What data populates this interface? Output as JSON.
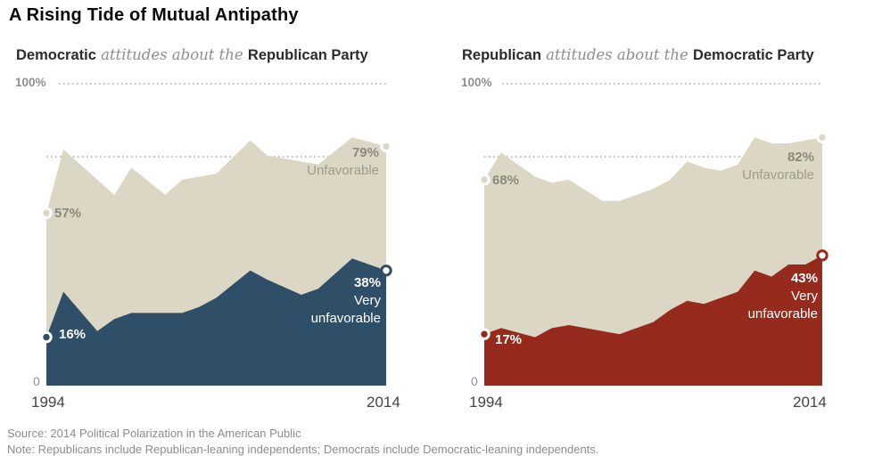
{
  "title": "A Rising Tide of Mutual Antipathy",
  "charts": [
    {
      "subtitle_lead": "Democratic",
      "subtitle_mid": " attitudes about the ",
      "subtitle_tail": "Republican Party",
      "axis": {
        "top": "100%",
        "zero": "0",
        "x_start": "1994",
        "x_end": "2014"
      }
    },
    {
      "subtitle_lead": "Republican",
      "subtitle_mid": " attitudes about the ",
      "subtitle_tail": "Democratic Party",
      "axis": {
        "top": "100%",
        "zero": "0",
        "x_start": "1994",
        "x_end": "2014"
      }
    }
  ],
  "chart_data": [
    {
      "type": "area",
      "title": "Democratic attitudes about the Republican Party",
      "xlim": [
        1994,
        2014
      ],
      "ylim": [
        0,
        100
      ],
      "grid": "dotted line at 100%, dotted leader line at end-label level",
      "legend_position": "labels inside plot at series start and end",
      "series": [
        {
          "name": "Unfavorable",
          "color": "#DBD7C4",
          "start_label": "57%",
          "end_label": "79%",
          "points": [
            [
              1994,
              57
            ],
            [
              1995,
              78
            ],
            [
              1996,
              73
            ],
            [
              1998,
              63
            ],
            [
              1999,
              72
            ],
            [
              2001,
              63
            ],
            [
              2002,
              68
            ],
            [
              2004,
              70
            ],
            [
              2006,
              81
            ],
            [
              2007,
              76
            ],
            [
              2009,
              74
            ],
            [
              2010,
              73
            ],
            [
              2012,
              82
            ],
            [
              2014,
              79
            ]
          ]
        },
        {
          "name": "Very unfavorable",
          "name_lines": [
            "Very",
            "unfavorable"
          ],
          "color": "#2F4F68",
          "start_label": "16%",
          "end_label": "38%",
          "points": [
            [
              1994,
              16
            ],
            [
              1995,
              31
            ],
            [
              1997,
              18
            ],
            [
              1998,
              22
            ],
            [
              1999,
              24
            ],
            [
              2001,
              24
            ],
            [
              2002,
              24
            ],
            [
              2003,
              26
            ],
            [
              2004,
              29
            ],
            [
              2006,
              38
            ],
            [
              2007,
              35
            ],
            [
              2009,
              30
            ],
            [
              2010,
              32
            ],
            [
              2012,
              42
            ],
            [
              2014,
              38
            ]
          ]
        }
      ]
    },
    {
      "type": "area",
      "title": "Republican attitudes about the Democratic Party",
      "xlim": [
        1994,
        2014
      ],
      "ylim": [
        0,
        100
      ],
      "grid": "dotted line at 100%, dotted leader line at end-label level",
      "legend_position": "labels inside plot at series start and end",
      "series": [
        {
          "name": "Unfavorable",
          "color": "#DBD7C4",
          "start_label": "68%",
          "end_label": "82%",
          "points": [
            [
              1994,
              68
            ],
            [
              1995,
              77
            ],
            [
              1997,
              69
            ],
            [
              1998,
              67
            ],
            [
              1999,
              68
            ],
            [
              2001,
              61
            ],
            [
              2002,
              61
            ],
            [
              2004,
              65
            ],
            [
              2005,
              68
            ],
            [
              2006,
              74
            ],
            [
              2007,
              72
            ],
            [
              2008,
              71
            ],
            [
              2009,
              73
            ],
            [
              2010,
              82
            ],
            [
              2011,
              80
            ],
            [
              2012,
              80
            ],
            [
              2014,
              82
            ]
          ]
        },
        {
          "name": "Very unfavorable",
          "name_lines": [
            "Very",
            "unfavorable"
          ],
          "color": "#962B1D",
          "start_label": "17%",
          "end_label": "43%",
          "points": [
            [
              1994,
              17
            ],
            [
              1995,
              19
            ],
            [
              1997,
              16
            ],
            [
              1998,
              19
            ],
            [
              1999,
              20
            ],
            [
              2000,
              19
            ],
            [
              2002,
              17
            ],
            [
              2003,
              19
            ],
            [
              2004,
              21
            ],
            [
              2005,
              25
            ],
            [
              2006,
              28
            ],
            [
              2007,
              27
            ],
            [
              2009,
              31
            ],
            [
              2010,
              38
            ],
            [
              2011,
              36
            ],
            [
              2012,
              40
            ],
            [
              2013,
              40
            ],
            [
              2014,
              43
            ]
          ]
        }
      ]
    }
  ],
  "colors": {
    "tan_area": "#DBD7C4",
    "blue_area": "#2F4F68",
    "red_area": "#962B1D",
    "dotted_grid": "#a8a8a8",
    "label_gray": "#8b8a7c"
  },
  "footer": {
    "source": "Source: 2014 Political Polarization in the American Public",
    "note": "Note: Republicans include Republican-leaning independents; Democrats include Democratic-leaning independents."
  }
}
